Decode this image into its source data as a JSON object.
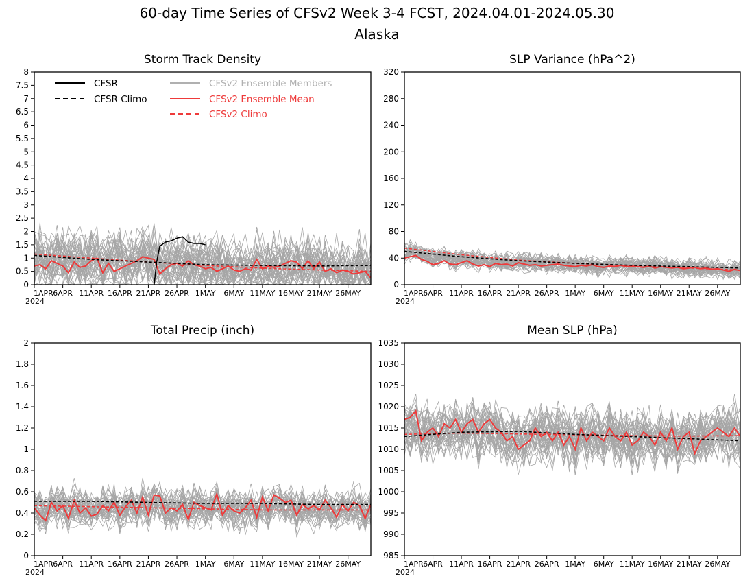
{
  "figure": {
    "title": "60-day Time Series of CFSv2 Week 3-4 FCST, 2024.04.01-2024.05.30",
    "subtitle": "Alaska"
  },
  "colors": {
    "cfsr": "#000000",
    "ensemble_members": "#a6a6a6",
    "ensemble_mean": "#ee3a3a",
    "cfsv2_climo": "#ee3a3a",
    "legend_members_text": "#b0b0b0"
  },
  "legend": [
    {
      "label": "CFSR",
      "style": "solid",
      "color": "#000000"
    },
    {
      "label": "CFSR Climo",
      "style": "dashed",
      "color": "#000000"
    },
    {
      "label": "CFSv2 Ensemble Members",
      "style": "solid",
      "color": "#b0b0b0"
    },
    {
      "label": "CFSv2 Ensemble Mean",
      "style": "solid",
      "color": "#ee3a3a"
    },
    {
      "label": "CFSv2 Climo",
      "style": "dashed",
      "color": "#ee3a3a"
    }
  ],
  "x_axis": {
    "tick_labels": [
      "1APR",
      "6APR",
      "11APR",
      "16APR",
      "21APR",
      "26APR",
      "1MAY",
      "6MAY",
      "11MAY",
      "16MAY",
      "21MAY",
      "26MAY"
    ],
    "tick_days": [
      0,
      5,
      10,
      15,
      20,
      25,
      30,
      35,
      40,
      45,
      50,
      55
    ],
    "year_label": "2024",
    "day_range": [
      0,
      59
    ]
  },
  "chart_data": [
    {
      "type": "line",
      "title": "Storm Track Density",
      "ylim": [
        0,
        8
      ],
      "yticks": [
        "0",
        "0.5",
        "1",
        "1.5",
        "2",
        "2.5",
        "3",
        "3.5",
        "4",
        "4.5",
        "5",
        "5.5",
        "6",
        "6.5",
        "7",
        "7.5",
        "8"
      ],
      "yticks_values": [
        0,
        0.5,
        1,
        1.5,
        2,
        2.5,
        3,
        3.5,
        4,
        4.5,
        5,
        5.5,
        6,
        6.5,
        7,
        7.5,
        8
      ],
      "member_count": 40,
      "member_spread": 0.55,
      "member_min": 0,
      "member_max": 3.3,
      "seed": 11,
      "series": [
        {
          "name": "CFSR",
          "style": "solid",
          "x": [
            21,
            21.5,
            22,
            23,
            24,
            25,
            26,
            27,
            28,
            29,
            30
          ],
          "values": [
            0,
            0.9,
            1.45,
            1.6,
            1.65,
            1.75,
            1.8,
            1.6,
            1.55,
            1.55,
            1.5
          ]
        },
        {
          "name": "CFSR Climo",
          "style": "dashed",
          "x": [
            0,
            10,
            20,
            30,
            40,
            50,
            59
          ],
          "values": [
            1.1,
            0.95,
            0.85,
            0.75,
            0.72,
            0.7,
            0.72
          ]
        },
        {
          "name": "CFSv2 Ensemble Mean",
          "style": "solid",
          "values": [
            0.7,
            0.75,
            0.6,
            0.9,
            0.8,
            0.7,
            0.45,
            0.85,
            0.65,
            0.7,
            0.9,
            1.0,
            0.45,
            0.8,
            0.5,
            0.6,
            0.7,
            0.8,
            0.9,
            1.05,
            1.0,
            0.95,
            0.4,
            0.6,
            0.75,
            0.8,
            0.7,
            0.9,
            0.75,
            0.7,
            0.6,
            0.65,
            0.5,
            0.6,
            0.7,
            0.55,
            0.5,
            0.6,
            0.55,
            0.95,
            0.6,
            0.7,
            0.65,
            0.7,
            0.8,
            0.9,
            0.85,
            0.6,
            0.9,
            0.6,
            0.85,
            0.5,
            0.6,
            0.45,
            0.55,
            0.5,
            0.4,
            0.45,
            0.5,
            0.25
          ]
        },
        {
          "name": "CFSv2 Climo",
          "style": "dashed",
          "x": [
            0,
            10,
            20,
            30,
            40,
            50,
            59
          ],
          "values": [
            1.15,
            1.0,
            0.85,
            0.72,
            0.62,
            0.55,
            0.5
          ]
        }
      ]
    },
    {
      "type": "line",
      "title": "SLP Variance (hPa^2)",
      "ylim": [
        0,
        320
      ],
      "yticks": [
        "0",
        "40",
        "80",
        "120",
        "160",
        "200",
        "240",
        "280",
        "320"
      ],
      "yticks_values": [
        0,
        40,
        80,
        120,
        160,
        200,
        240,
        280,
        320
      ],
      "member_count": 40,
      "member_spread": 7,
      "member_min": 8,
      "member_max": 110,
      "seed": 23,
      "series": [
        {
          "name": "CFSR Climo",
          "style": "dashed",
          "x": [
            0,
            10,
            20,
            30,
            40,
            50,
            59
          ],
          "values": [
            50,
            42,
            36,
            32,
            29,
            27,
            25
          ]
        },
        {
          "name": "CFSv2 Ensemble Mean",
          "style": "solid",
          "values": [
            40,
            42,
            44,
            38,
            35,
            30,
            32,
            36,
            31,
            30,
            33,
            36,
            31,
            28,
            30,
            27,
            32,
            30,
            31,
            28,
            33,
            31,
            29,
            30,
            28,
            29,
            30,
            31,
            29,
            28,
            27,
            29,
            28,
            30,
            27,
            26,
            28,
            27,
            29,
            27,
            28,
            27,
            26,
            28,
            25,
            27,
            26,
            25,
            26,
            24,
            25,
            26,
            24,
            25,
            23,
            24,
            22,
            20,
            23,
            21
          ]
        },
        {
          "name": "CFSv2 Climo",
          "style": "dashed",
          "x": [
            0,
            10,
            20,
            30,
            40,
            50,
            59
          ],
          "values": [
            55,
            45,
            37,
            32,
            28,
            25,
            22
          ]
        }
      ]
    },
    {
      "type": "line",
      "title": "Total Precip (inch)",
      "ylim": [
        0,
        2
      ],
      "yticks": [
        "0",
        "0.2",
        "0.4",
        "0.6",
        "0.8",
        "1",
        "1.2",
        "1.4",
        "1.6",
        "1.8",
        "2"
      ],
      "yticks_values": [
        0,
        0.2,
        0.4,
        0.6,
        0.8,
        1.0,
        1.2,
        1.4,
        1.6,
        1.8,
        2.0
      ],
      "member_count": 40,
      "member_spread": 0.09,
      "member_min": 0.15,
      "member_max": 0.85,
      "seed": 37,
      "series": [
        {
          "name": "CFSR Climo",
          "style": "dashed",
          "x": [
            0,
            10,
            20,
            30,
            40,
            50,
            59
          ],
          "values": [
            0.51,
            0.51,
            0.5,
            0.49,
            0.49,
            0.48,
            0.48
          ]
        },
        {
          "name": "CFSv2 Ensemble Mean",
          "style": "solid",
          "values": [
            0.45,
            0.38,
            0.33,
            0.5,
            0.42,
            0.47,
            0.35,
            0.52,
            0.4,
            0.45,
            0.37,
            0.39,
            0.47,
            0.42,
            0.5,
            0.38,
            0.46,
            0.52,
            0.4,
            0.55,
            0.38,
            0.57,
            0.56,
            0.4,
            0.45,
            0.42,
            0.48,
            0.34,
            0.5,
            0.47,
            0.45,
            0.43,
            0.58,
            0.38,
            0.47,
            0.42,
            0.4,
            0.45,
            0.52,
            0.36,
            0.55,
            0.42,
            0.57,
            0.54,
            0.5,
            0.52,
            0.38,
            0.48,
            0.44,
            0.47,
            0.43,
            0.52,
            0.45,
            0.36,
            0.48,
            0.42,
            0.5,
            0.47,
            0.35,
            0.48
          ]
        },
        {
          "name": "CFSv2 Climo",
          "style": "dashed",
          "x": [
            0,
            10,
            20,
            30,
            40,
            50,
            59
          ],
          "values": [
            0.47,
            0.46,
            0.45,
            0.44,
            0.43,
            0.43,
            0.43
          ]
        }
      ]
    },
    {
      "type": "line",
      "title": "Mean SLP (hPa)",
      "ylim": [
        985,
        1035
      ],
      "yticks": [
        "985",
        "990",
        "995",
        "1000",
        "1005",
        "1010",
        "1015",
        "1020",
        "1025",
        "1030",
        "1035"
      ],
      "yticks_values": [
        985,
        990,
        995,
        1000,
        1005,
        1010,
        1015,
        1020,
        1025,
        1030,
        1035
      ],
      "member_count": 40,
      "member_spread": 3.2,
      "member_min": 1004,
      "member_max": 1024,
      "seed": 53,
      "series": [
        {
          "name": "CFSR Climo",
          "style": "dashed",
          "x": [
            0,
            10,
            20,
            30,
            40,
            50,
            59
          ],
          "values": [
            1013,
            1014,
            1014.2,
            1013.5,
            1013,
            1012.5,
            1012
          ]
        },
        {
          "name": "CFSv2 Ensemble Mean",
          "style": "solid",
          "values": [
            1017,
            1017.5,
            1019,
            1012,
            1014,
            1015,
            1013,
            1016,
            1015,
            1017,
            1014,
            1016,
            1017,
            1014,
            1016,
            1017,
            1015,
            1014,
            1012,
            1013,
            1010,
            1011,
            1012,
            1015,
            1013,
            1014,
            1012,
            1014,
            1011,
            1013,
            1010,
            1015,
            1012,
            1014,
            1013,
            1012,
            1015,
            1013,
            1012,
            1014,
            1011,
            1012,
            1014,
            1013,
            1011,
            1014,
            1012,
            1015,
            1010,
            1013,
            1014,
            1009,
            1012,
            1013,
            1014,
            1015,
            1014,
            1013,
            1015,
            1013
          ]
        },
        {
          "name": "CFSv2 Climo",
          "style": "dashed",
          "x": [
            0,
            10,
            20,
            30,
            40,
            50,
            59
          ],
          "values": [
            1013.5,
            1013.8,
            1013.6,
            1013.4,
            1013.2,
            1013.1,
            1013.2
          ]
        }
      ]
    }
  ]
}
